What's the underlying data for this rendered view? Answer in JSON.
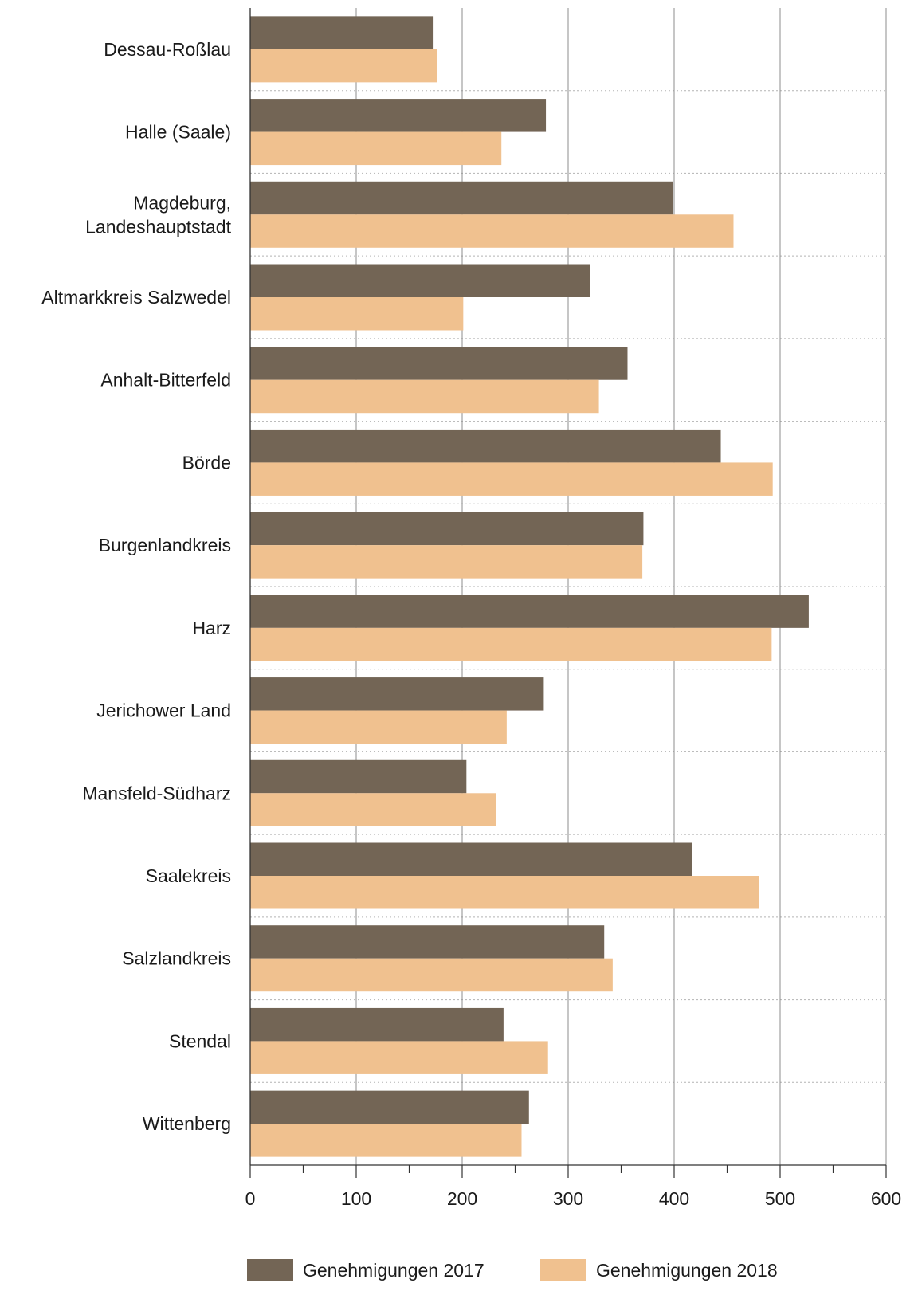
{
  "chart_data": {
    "type": "bar",
    "orientation": "horizontal",
    "categories": [
      [
        "Dessau-Roßlau"
      ],
      [
        "Halle (Saale)"
      ],
      [
        "Magdeburg,",
        "Landeshauptstadt"
      ],
      [
        "Altmarkkreis Salzwedel"
      ],
      [
        "Anhalt-Bitterfeld"
      ],
      [
        "Börde"
      ],
      [
        "Burgenlandkreis"
      ],
      [
        "Harz"
      ],
      [
        "Jerichower Land"
      ],
      [
        "Mansfeld-Südharz"
      ],
      [
        "Saalekreis"
      ],
      [
        "Salzlandkreis"
      ],
      [
        "Stendal"
      ],
      [
        "Wittenberg"
      ]
    ],
    "series": [
      {
        "name": "Genehmigungen 2017",
        "color": "#736555",
        "values": [
          173,
          279,
          399,
          321,
          356,
          444,
          371,
          527,
          277,
          204,
          417,
          334,
          239,
          263
        ]
      },
      {
        "name": "Genehmigungen 2018",
        "color": "#f0c18f",
        "values": [
          176,
          237,
          456,
          201,
          329,
          493,
          370,
          492,
          242,
          232,
          480,
          342,
          281,
          256
        ]
      }
    ],
    "xlim": [
      0,
      600
    ],
    "xticks": [
      0,
      100,
      200,
      300,
      400,
      500,
      600
    ],
    "xlabel": "",
    "ylabel": "",
    "title": "",
    "grid": true,
    "legend_position": "bottom"
  }
}
